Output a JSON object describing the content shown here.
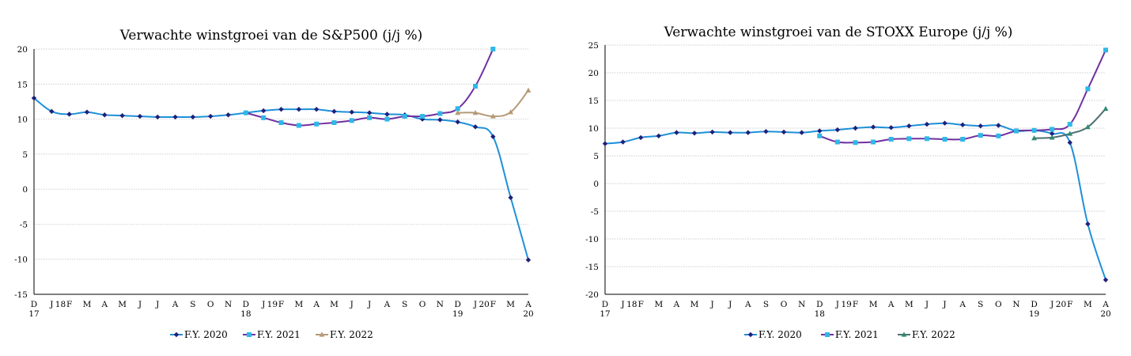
{
  "colors": {
    "fy2020": "#1f1f7a",
    "fy2020_line": "#1e90d8",
    "fy2021": "#7030a0",
    "fy2021_marker": "#2eb8e8",
    "fy2022_left": "#b59a78",
    "fy2022_right": "#4f6f6f",
    "fy2022_right_marker": "#2e8b72",
    "grid": "#bdbdbd"
  },
  "chart_data": [
    {
      "type": "line",
      "title": "Verwachte winstgroei van de S&P500 (j/j %)",
      "xlabel": "",
      "ylabel": "",
      "ylim": [
        -15,
        20
      ],
      "yticks": [
        20,
        15,
        10,
        5,
        0,
        -5,
        -10,
        -15
      ],
      "x_labels": [
        {
          "m": "D",
          "y": "17"
        },
        {
          "m": "J",
          "y": ""
        },
        {
          "m": "18",
          "y": ""
        },
        {
          "m": "F",
          "y": ""
        },
        {
          "m": "M",
          "y": ""
        },
        {
          "m": "A",
          "y": ""
        },
        {
          "m": "M",
          "y": ""
        },
        {
          "m": "J",
          "y": ""
        },
        {
          "m": "J",
          "y": ""
        },
        {
          "m": "A",
          "y": ""
        },
        {
          "m": "S",
          "y": ""
        },
        {
          "m": "O",
          "y": ""
        },
        {
          "m": "N",
          "y": ""
        },
        {
          "m": "D",
          "y": "18"
        },
        {
          "m": "J",
          "y": ""
        },
        {
          "m": "19",
          "y": ""
        },
        {
          "m": "F",
          "y": ""
        },
        {
          "m": "M",
          "y": ""
        },
        {
          "m": "A",
          "y": ""
        },
        {
          "m": "M",
          "y": ""
        },
        {
          "m": "J",
          "y": ""
        },
        {
          "m": "J",
          "y": ""
        },
        {
          "m": "A",
          "y": ""
        },
        {
          "m": "S",
          "y": ""
        },
        {
          "m": "O",
          "y": ""
        },
        {
          "m": "N",
          "y": ""
        },
        {
          "m": "D",
          "y": "19"
        },
        {
          "m": "J",
          "y": ""
        },
        {
          "m": "20",
          "y": ""
        },
        {
          "m": "F",
          "y": ""
        },
        {
          "m": "M",
          "y": ""
        },
        {
          "m": "A",
          "y": "20"
        }
      ],
      "x_label_pos": [
        0,
        1,
        1.5,
        2,
        3,
        4,
        5,
        6,
        7,
        8,
        9,
        10,
        11,
        12,
        13,
        13.5,
        14,
        15,
        16,
        17,
        18,
        19,
        20,
        21,
        22,
        23,
        24,
        25,
        25.5,
        26,
        27,
        28
      ],
      "x_max": 28,
      "series": [
        {
          "name": "F.Y. 2020",
          "start": 0,
          "values": [
            13.0,
            11.1,
            10.7,
            11.0,
            10.6,
            10.5,
            10.4,
            10.3,
            10.3,
            10.3,
            10.4,
            10.6,
            10.9,
            11.2,
            11.4,
            11.4,
            11.4,
            11.1,
            11.0,
            10.9,
            10.7,
            10.6,
            10.0,
            9.9,
            9.6,
            8.9,
            7.5,
            -1.2,
            -10.1
          ],
          "marker": "diamond"
        },
        {
          "name": "F.Y. 2021",
          "start": 12,
          "values": [
            10.9,
            10.2,
            9.5,
            9.1,
            9.3,
            9.5,
            9.8,
            10.2,
            10.0,
            10.4,
            10.4,
            10.8,
            11.5,
            14.7,
            20.0
          ],
          "marker": "square"
        },
        {
          "name": "F.Y. 2022",
          "start": 24,
          "values": [
            10.9,
            10.9,
            10.4,
            11.0,
            14.1
          ],
          "marker": "triangle"
        }
      ]
    },
    {
      "type": "line",
      "title": "Verwachte winstgroei van de STOXX Europe (j/j %)",
      "xlabel": "",
      "ylabel": "",
      "ylim": [
        -20,
        25
      ],
      "yticks": [
        25,
        20,
        15,
        10,
        5,
        0,
        -5,
        -10,
        -15,
        -20
      ],
      "x_labels": [
        {
          "m": "D",
          "y": "17"
        },
        {
          "m": "J",
          "y": ""
        },
        {
          "m": "18",
          "y": ""
        },
        {
          "m": "F",
          "y": ""
        },
        {
          "m": "M",
          "y": ""
        },
        {
          "m": "A",
          "y": ""
        },
        {
          "m": "M",
          "y": ""
        },
        {
          "m": "J",
          "y": ""
        },
        {
          "m": "J",
          "y": ""
        },
        {
          "m": "A",
          "y": ""
        },
        {
          "m": "S",
          "y": ""
        },
        {
          "m": "O",
          "y": ""
        },
        {
          "m": "N",
          "y": ""
        },
        {
          "m": "D",
          "y": "18"
        },
        {
          "m": "J",
          "y": ""
        },
        {
          "m": "19",
          "y": ""
        },
        {
          "m": "F",
          "y": ""
        },
        {
          "m": "M",
          "y": ""
        },
        {
          "m": "A",
          "y": ""
        },
        {
          "m": "M",
          "y": ""
        },
        {
          "m": "J",
          "y": ""
        },
        {
          "m": "J",
          "y": ""
        },
        {
          "m": "A",
          "y": ""
        },
        {
          "m": "S",
          "y": ""
        },
        {
          "m": "O",
          "y": ""
        },
        {
          "m": "N",
          "y": ""
        },
        {
          "m": "D",
          "y": "19"
        },
        {
          "m": "J",
          "y": ""
        },
        {
          "m": "20",
          "y": ""
        },
        {
          "m": "F",
          "y": ""
        },
        {
          "m": "M",
          "y": ""
        },
        {
          "m": "A",
          "y": "20"
        }
      ],
      "x_label_pos": [
        0,
        1,
        1.5,
        2,
        3,
        4,
        5,
        6,
        7,
        8,
        9,
        10,
        11,
        12,
        13,
        13.5,
        14,
        15,
        16,
        17,
        18,
        19,
        20,
        21,
        22,
        23,
        24,
        25,
        25.5,
        26,
        27,
        28
      ],
      "x_max": 28,
      "series": [
        {
          "name": "F.Y. 2020",
          "start": 0,
          "values": [
            7.2,
            7.5,
            8.3,
            8.6,
            9.2,
            9.1,
            9.3,
            9.2,
            9.2,
            9.4,
            9.3,
            9.2,
            9.5,
            9.7,
            10.0,
            10.2,
            10.1,
            10.4,
            10.7,
            10.9,
            10.6,
            10.4,
            10.5,
            9.5,
            9.6,
            9.0,
            7.4,
            -7.3,
            -17.4
          ],
          "marker": "diamond"
        },
        {
          "name": "F.Y. 2021",
          "start": 12,
          "values": [
            8.6,
            7.5,
            7.4,
            7.5,
            8.0,
            8.1,
            8.1,
            8.0,
            8.0,
            8.7,
            8.6,
            9.5,
            9.6,
            9.8,
            10.7,
            17.1,
            24.1
          ],
          "marker": "square"
        },
        {
          "name": "F.Y. 2022",
          "start": 24,
          "values": [
            8.2,
            8.3,
            9.0,
            10.2,
            13.5
          ],
          "marker": "triangle"
        }
      ]
    }
  ]
}
